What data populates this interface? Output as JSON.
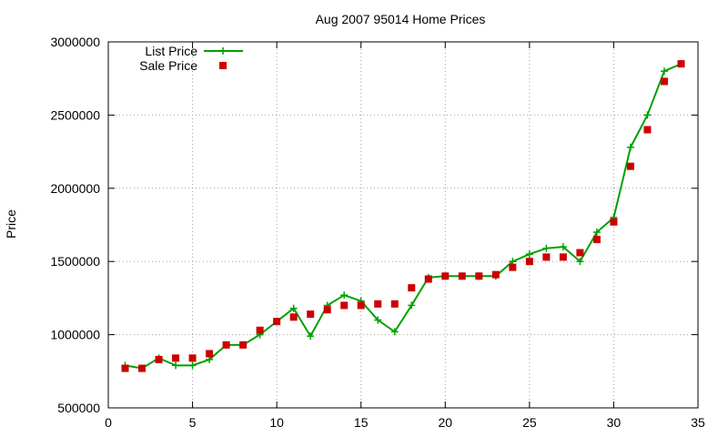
{
  "chart_data": {
    "type": "line",
    "title": "Aug 2007 95014 Home Prices",
    "xlabel": "",
    "ylabel": "Price",
    "xlim": [
      0,
      35
    ],
    "ylim": [
      500000,
      3000000
    ],
    "xticks": [
      0,
      5,
      10,
      15,
      20,
      25,
      30,
      35
    ],
    "yticks": [
      500000,
      1000000,
      1500000,
      2000000,
      2500000,
      3000000
    ],
    "grid": true,
    "legend_position": "top-left",
    "series": [
      {
        "name": "List Price",
        "style": "line-plus",
        "color": "#00a000",
        "x": [
          1,
          2,
          3,
          4,
          5,
          6,
          7,
          8,
          9,
          10,
          11,
          12,
          13,
          14,
          15,
          16,
          17,
          18,
          19,
          20,
          21,
          22,
          23,
          24,
          25,
          26,
          27,
          28,
          29,
          30,
          31,
          32,
          33,
          34
        ],
        "y": [
          790000,
          770000,
          840000,
          790000,
          790000,
          830000,
          930000,
          930000,
          1000000,
          1090000,
          1180000,
          990000,
          1200000,
          1270000,
          1230000,
          1100000,
          1020000,
          1200000,
          1390000,
          1400000,
          1400000,
          1400000,
          1400000,
          1500000,
          1550000,
          1590000,
          1600000,
          1500000,
          1700000,
          1800000,
          2280000,
          2500000,
          2800000,
          2850000
        ]
      },
      {
        "name": "Sale Price",
        "style": "square",
        "color": "#cc0000",
        "x": [
          1,
          2,
          3,
          4,
          5,
          6,
          7,
          8,
          9,
          10,
          11,
          12,
          13,
          14,
          15,
          16,
          17,
          18,
          19,
          20,
          21,
          22,
          23,
          24,
          25,
          26,
          27,
          28,
          29,
          30,
          31,
          32,
          33,
          34
        ],
        "y": [
          770000,
          770000,
          830000,
          840000,
          840000,
          870000,
          930000,
          930000,
          1030000,
          1090000,
          1120000,
          1140000,
          1170000,
          1200000,
          1200000,
          1210000,
          1210000,
          1320000,
          1380000,
          1400000,
          1400000,
          1400000,
          1410000,
          1460000,
          1500000,
          1530000,
          1530000,
          1560000,
          1650000,
          1770000,
          2150000,
          2400000,
          2730000,
          2850000
        ]
      }
    ]
  }
}
